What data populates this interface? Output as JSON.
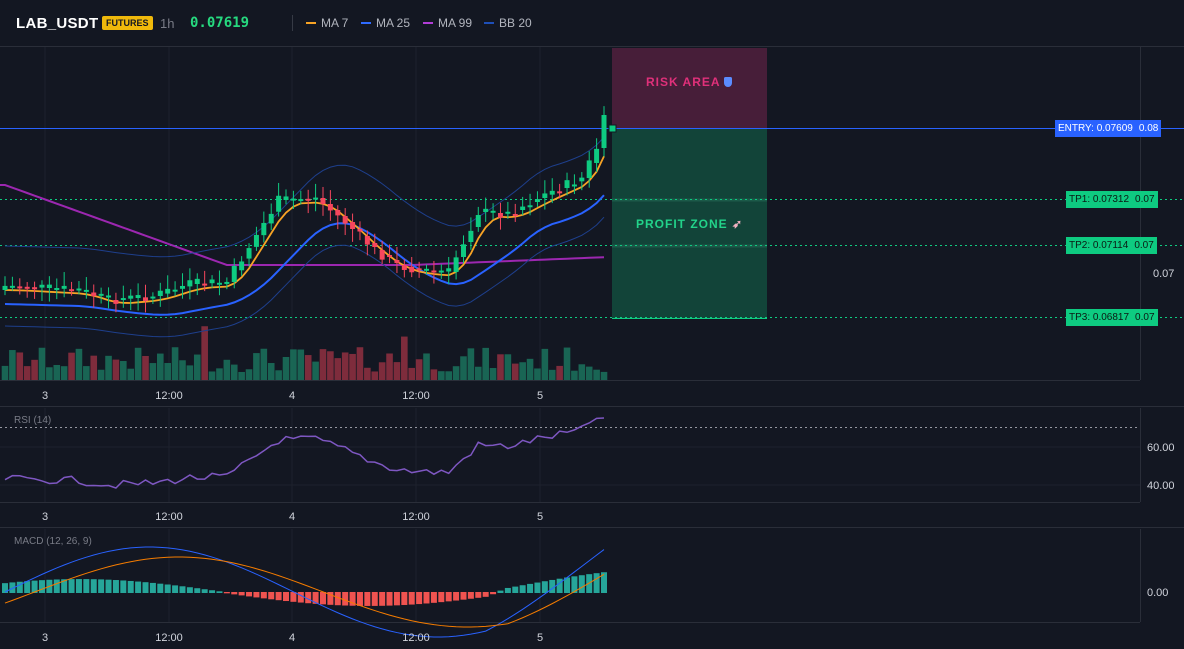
{
  "header": {
    "symbol": "LAB_USDT",
    "market_badge": "FUTURES",
    "interval": "1h",
    "last_price": "0.07619",
    "indicators": [
      {
        "label": "MA 7",
        "color": "#f7a325"
      },
      {
        "label": "MA 25",
        "color": "#2f6bff"
      },
      {
        "label": "MA 99",
        "color": "#b13dd6"
      },
      {
        "label": "BB 20",
        "color": "#1e4fb8"
      }
    ]
  },
  "zones": {
    "risk_label": "RISK AREA",
    "risk_icon": "shield-icon",
    "profit_label": "PROFIT ZONE",
    "profit_icon": "rocket-icon"
  },
  "price_axis": {
    "entry_tag": "ENTRY: 0.07609",
    "entry_value": "0.08",
    "tp1_tag": "TP1: 0.07312",
    "tp1_value": "0.07",
    "tp2_tag": "TP2: 0.07114",
    "tp2_value": "0.07",
    "plain_tick": "0.07",
    "tp3_tag": "TP3: 0.06817",
    "tp3_value": "0.07"
  },
  "time_axis": [
    "3",
    "12:00",
    "4",
    "12:00",
    "5"
  ],
  "rsi": {
    "label": "RSI (14)",
    "ticks": [
      "60.00",
      "40.00"
    ]
  },
  "macd": {
    "label": "MACD (12, 26, 9)",
    "ticks": [
      "0.00"
    ]
  },
  "colors": {
    "background": "#131722",
    "bull": "#0ecb81",
    "bear": "#f6465d",
    "entry": "#2962ff",
    "tp": "#0ecb81",
    "rsi_line": "#7e57c2"
  }
}
